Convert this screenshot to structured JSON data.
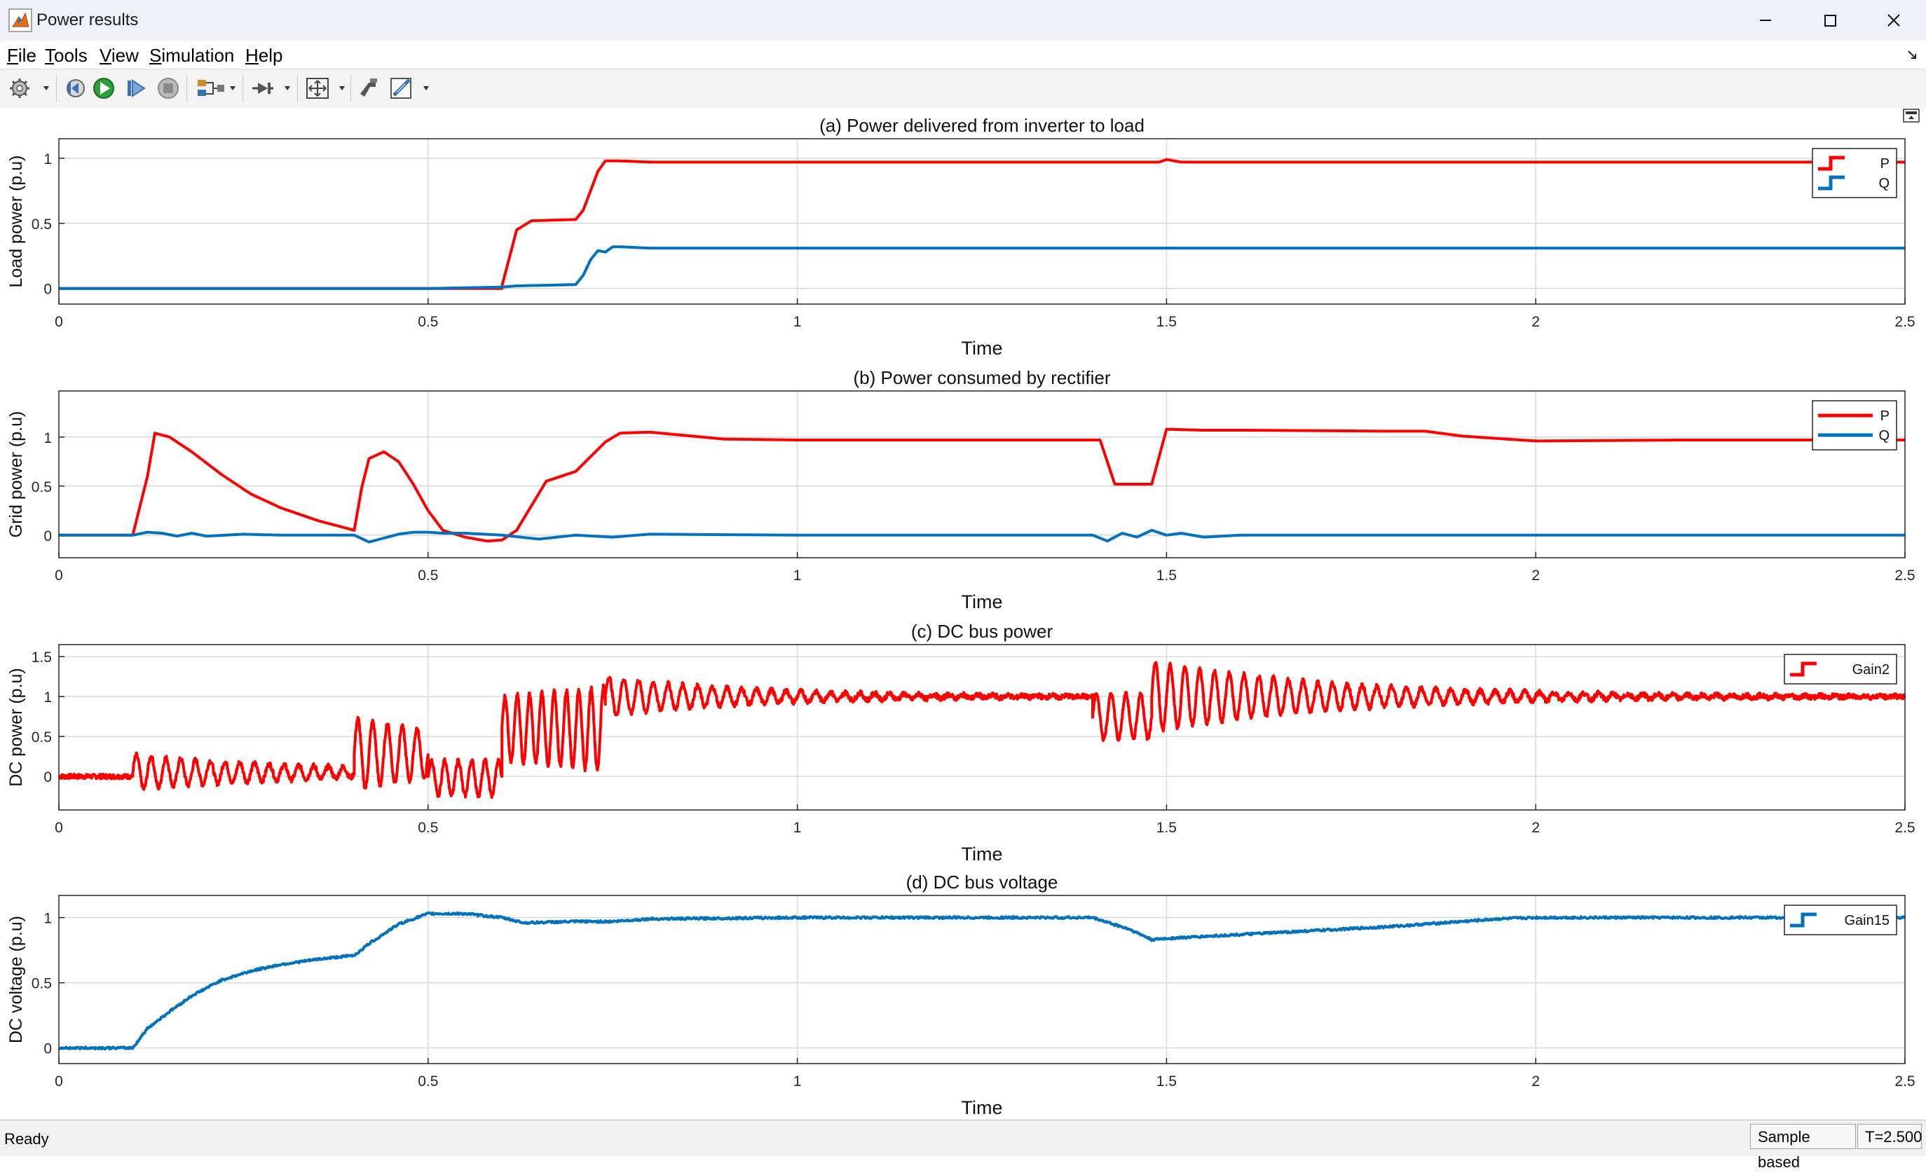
{
  "window": {
    "title": "Power results",
    "icon": "matlab-icon"
  },
  "menu": [
    {
      "label": "File",
      "accel": "F",
      "rest": "ile"
    },
    {
      "label": "Tools",
      "accel": "T",
      "rest": "ools"
    },
    {
      "label": "View",
      "accel": "V",
      "rest": "iew"
    },
    {
      "label": "Simulation",
      "accel": "S",
      "rest": "imulation"
    },
    {
      "label": "Help",
      "accel": "H",
      "rest": "elp"
    }
  ],
  "toolbar": [
    "settings-gear-icon",
    "step-back-icon",
    "run-icon",
    "step-forward-icon",
    "stop-icon",
    "signal-selector-icon",
    "trigger-icon",
    "zoom-fit-icon",
    "style-icon",
    "measure-icon"
  ],
  "status": {
    "text": "Ready",
    "mode": "Sample based",
    "time": "T=2.500"
  },
  "colors": {
    "p": "#ff0000",
    "q": "#0072bd",
    "grid": "#d9d9d9"
  },
  "chart_data": [
    {
      "type": "line",
      "title": "(a) Power delivered from inverter to load",
      "xlabel": "Time",
      "ylabel": "Load power (p.u)",
      "xlim": [
        0,
        2.5
      ],
      "ylim": [
        -0.12,
        1.15
      ],
      "yticks": [
        0,
        0.5,
        1
      ],
      "xticks": [
        0,
        0.5,
        1,
        1.5,
        2,
        2.5
      ],
      "legend_position": "top-right",
      "legend_style": "stairs",
      "series": [
        {
          "name": "P",
          "color": "#ff0000",
          "x": [
            0,
            0.6,
            0.6,
            0.62,
            0.64,
            0.7,
            0.71,
            0.73,
            0.74,
            0.76,
            0.8,
            1.0,
            1.4,
            1.49,
            1.5,
            1.52,
            1.6,
            2.0,
            2.5
          ],
          "y": [
            0,
            0,
            0.02,
            0.45,
            0.52,
            0.53,
            0.6,
            0.9,
            0.98,
            0.98,
            0.97,
            0.97,
            0.97,
            0.97,
            0.99,
            0.97,
            0.97,
            0.97,
            0.97
          ]
        },
        {
          "name": "Q",
          "color": "#0072bd",
          "x": [
            0,
            0.5,
            0.6,
            0.62,
            0.7,
            0.71,
            0.72,
            0.73,
            0.74,
            0.75,
            0.76,
            0.8,
            1.0,
            1.5,
            2.0,
            2.5
          ],
          "y": [
            0,
            0,
            0.01,
            0.02,
            0.03,
            0.1,
            0.22,
            0.29,
            0.28,
            0.32,
            0.32,
            0.31,
            0.31,
            0.31,
            0.31,
            0.31
          ]
        }
      ]
    },
    {
      "type": "line",
      "title": "(b) Power consumed by rectifier",
      "xlabel": "Time",
      "ylabel": "Grid power (p.u)",
      "xlim": [
        0,
        2.5
      ],
      "ylim": [
        -0.23,
        1.47
      ],
      "yticks": [
        0,
        0.5,
        1
      ],
      "xticks": [
        0,
        0.5,
        1,
        1.5,
        2,
        2.5
      ],
      "legend_position": "top-right",
      "legend_style": "line",
      "series": [
        {
          "name": "P",
          "color": "#ff0000",
          "x": [
            0,
            0.1,
            0.12,
            0.13,
            0.15,
            0.18,
            0.22,
            0.26,
            0.3,
            0.35,
            0.4,
            0.41,
            0.42,
            0.44,
            0.46,
            0.48,
            0.5,
            0.52,
            0.55,
            0.58,
            0.6,
            0.62,
            0.64,
            0.66,
            0.7,
            0.72,
            0.74,
            0.76,
            0.8,
            0.9,
            1.0,
            1.2,
            1.4,
            1.41,
            1.43,
            1.47,
            1.48,
            1.5,
            1.55,
            1.6,
            1.8,
            1.85,
            1.9,
            2.0,
            2.2,
            2.5
          ],
          "y": [
            0,
            0,
            0.6,
            1.04,
            1.0,
            0.85,
            0.62,
            0.42,
            0.28,
            0.15,
            0.05,
            0.48,
            0.78,
            0.85,
            0.75,
            0.52,
            0.25,
            0.05,
            -0.02,
            -0.06,
            -0.05,
            0.05,
            0.3,
            0.55,
            0.65,
            0.8,
            0.95,
            1.04,
            1.05,
            0.98,
            0.97,
            0.97,
            0.97,
            0.97,
            0.52,
            0.52,
            0.52,
            1.08,
            1.07,
            1.07,
            1.06,
            1.06,
            1.01,
            0.96,
            0.97,
            0.97
          ]
        },
        {
          "name": "Q",
          "color": "#0072bd",
          "x": [
            0,
            0.1,
            0.12,
            0.14,
            0.16,
            0.18,
            0.2,
            0.25,
            0.3,
            0.35,
            0.4,
            0.42,
            0.44,
            0.46,
            0.48,
            0.5,
            0.52,
            0.55,
            0.6,
            0.65,
            0.7,
            0.75,
            0.8,
            1.0,
            1.4,
            1.42,
            1.44,
            1.46,
            1.48,
            1.5,
            1.52,
            1.55,
            1.6,
            2.0,
            2.5
          ],
          "y": [
            0,
            0,
            0.03,
            0.02,
            -0.01,
            0.02,
            -0.01,
            0.01,
            0,
            0,
            0,
            -0.07,
            -0.03,
            0.01,
            0.03,
            0.03,
            0.02,
            0.02,
            0,
            -0.04,
            0,
            -0.02,
            0.01,
            0,
            0,
            -0.06,
            0.02,
            -0.02,
            0.05,
            0,
            0.02,
            -0.02,
            0,
            0,
            0
          ]
        }
      ]
    },
    {
      "type": "line",
      "title": "(c) DC bus power",
      "xlabel": "Time",
      "ylabel": "DC power (p.u)",
      "xlim": [
        0,
        2.5
      ],
      "ylim": [
        -0.42,
        1.65
      ],
      "yticks": [
        0,
        0.5,
        1,
        1.5
      ],
      "xticks": [
        0,
        0.5,
        1,
        1.5,
        2,
        2.5
      ],
      "legend_position": "top-right",
      "legend_style": "stairs",
      "series": [
        {
          "name": "Gain2",
          "color": "#ff0000",
          "segments": [
            {
              "x0": 0,
              "x1": 0.1,
              "base": 0,
              "amp": 0
            },
            {
              "x0": 0.1,
              "x1": 0.4,
              "base": 0.05,
              "amp": 0.22,
              "freq": 50,
              "decay": 4
            },
            {
              "x0": 0.4,
              "x1": 0.5,
              "base": 0.28,
              "amp": 0.45,
              "freq": 50,
              "decay": 4
            },
            {
              "x0": 0.5,
              "x1": 0.6,
              "base": -0.02,
              "amp": 0.22,
              "freq": 55,
              "decay": 0
            },
            {
              "x0": 0.6,
              "x1": 0.74,
              "base": 0.6,
              "amp": 0.4,
              "freq": 60,
              "decay": -2
            },
            {
              "x0": 0.74,
              "x1": 1.4,
              "base": 1.0,
              "amp": 0.25,
              "freq": 50,
              "decay": 5
            },
            {
              "x0": 1.4,
              "x1": 1.48,
              "base": 0.75,
              "amp": 0.28,
              "freq": 50,
              "decay": 0
            },
            {
              "x0": 1.48,
              "x1": 2.5,
              "base": 1.0,
              "amp": 0.45,
              "freq": 50,
              "decay": 4
            }
          ],
          "noise": 0.03
        }
      ]
    },
    {
      "type": "line",
      "title": "(d) DC bus voltage",
      "xlabel": "Time",
      "ylabel": "DC voltage (p.u)",
      "xlim": [
        0,
        2.5
      ],
      "ylim": [
        -0.12,
        1.17
      ],
      "yticks": [
        0,
        0.5,
        1
      ],
      "xticks": [
        0,
        0.5,
        1,
        1.5,
        2,
        2.5
      ],
      "legend_position": "top-right",
      "legend_style": "stairs",
      "series": [
        {
          "name": "Gain15",
          "color": "#0072bd",
          "x": [
            0,
            0.1,
            0.12,
            0.15,
            0.18,
            0.22,
            0.26,
            0.3,
            0.35,
            0.4,
            0.42,
            0.46,
            0.5,
            0.55,
            0.6,
            0.63,
            0.7,
            0.75,
            0.8,
            1.0,
            1.2,
            1.4,
            1.45,
            1.48,
            1.5,
            1.6,
            1.8,
            1.95,
            2.0,
            2.2,
            2.5
          ],
          "y": [
            0,
            0,
            0.15,
            0.28,
            0.4,
            0.52,
            0.59,
            0.64,
            0.68,
            0.71,
            0.8,
            0.95,
            1.03,
            1.03,
            1.0,
            0.96,
            0.97,
            0.97,
            0.99,
            1.0,
            1.0,
            1.0,
            0.91,
            0.83,
            0.84,
            0.87,
            0.93,
            0.99,
            1.0,
            1.0,
            1.0
          ],
          "noise": 0.008
        }
      ]
    }
  ]
}
